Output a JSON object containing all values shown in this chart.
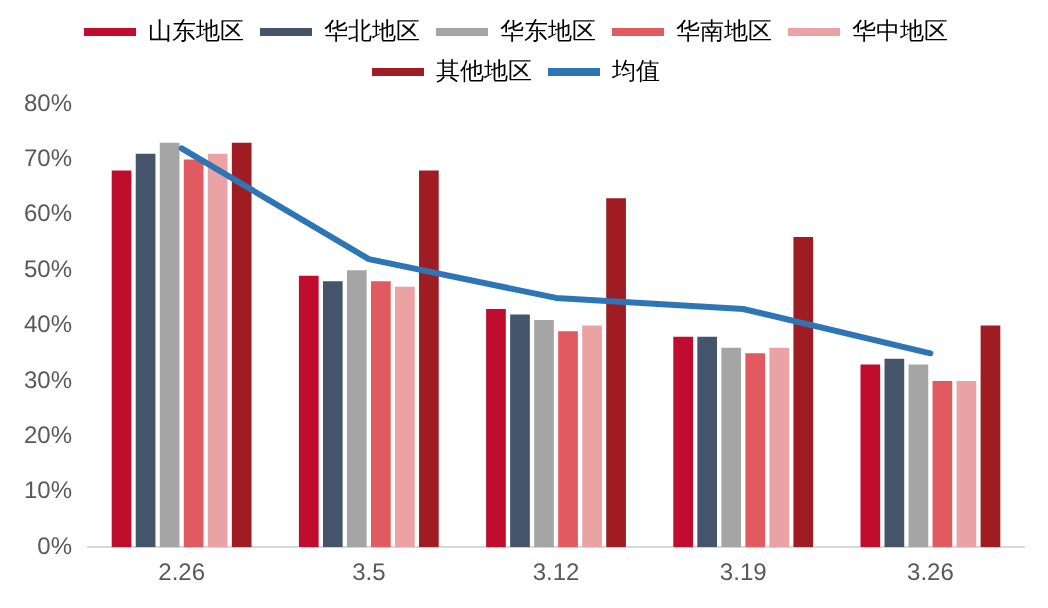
{
  "chart_data": {
    "type": "bar",
    "categories": [
      "2.26",
      "3.5",
      "3.12",
      "3.19",
      "3.26"
    ],
    "series": [
      {
        "name": "山东地区",
        "color": "#c00d2e",
        "values": [
          68,
          49,
          43,
          38,
          33
        ]
      },
      {
        "name": "华北地区",
        "color": "#44546a",
        "values": [
          71,
          48,
          42,
          38,
          34
        ]
      },
      {
        "name": "华东地区",
        "color": "#a5a5a5",
        "values": [
          73,
          50,
          41,
          36,
          33
        ]
      },
      {
        "name": "华南地区",
        "color": "#e15a60",
        "values": [
          70,
          48,
          39,
          35,
          30
        ]
      },
      {
        "name": "华中地区",
        "color": "#eba2a4",
        "values": [
          71,
          47,
          40,
          36,
          30
        ]
      },
      {
        "name": "其他地区",
        "color": "#9e1c22",
        "values": [
          73,
          68,
          63,
          56,
          40
        ]
      },
      {
        "name": "均值",
        "type": "line",
        "color": "#2e75b6",
        "values": [
          72,
          52,
          45,
          43,
          35
        ]
      }
    ],
    "ylim": [
      0,
      80
    ],
    "yticks": [
      {
        "value": 0,
        "label": "0%"
      },
      {
        "value": 10,
        "label": "10%"
      },
      {
        "value": 20,
        "label": "20%"
      },
      {
        "value": 30,
        "label": "30%"
      },
      {
        "value": 40,
        "label": "40%"
      },
      {
        "value": 50,
        "label": "50%"
      },
      {
        "value": 60,
        "label": "60%"
      },
      {
        "value": 70,
        "label": "70%"
      },
      {
        "value": 80,
        "label": "80%"
      }
    ],
    "grid": false,
    "legend": "top",
    "marker": "none"
  }
}
